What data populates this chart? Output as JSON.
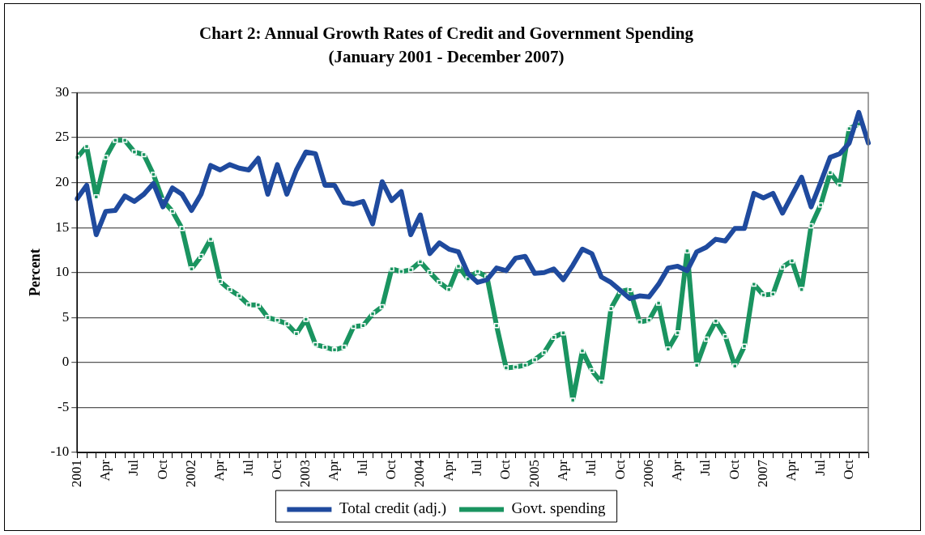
{
  "chart_data": {
    "type": "line",
    "title": "Chart 2: Annual Growth Rates of Credit and Government Spending",
    "subtitle": "(January 2001 - December 2007)",
    "ylabel": "Percent",
    "categories": [
      "2001",
      null,
      null,
      "Apr",
      null,
      null,
      "Jul",
      null,
      null,
      "Oct",
      null,
      null,
      "2002",
      null,
      null,
      "Apr",
      null,
      null,
      "Jul",
      null,
      null,
      "Oct",
      null,
      null,
      "2003",
      null,
      null,
      "Apr",
      null,
      null,
      "Jul",
      null,
      null,
      "Oct",
      null,
      null,
      "2004",
      null,
      null,
      "Apr",
      null,
      null,
      "Jul",
      null,
      null,
      "Oct",
      null,
      null,
      "2005",
      null,
      null,
      "Apr",
      null,
      null,
      "Jul",
      null,
      null,
      "Oct",
      null,
      null,
      "2006",
      null,
      null,
      "Apr",
      null,
      null,
      "Jul",
      null,
      null,
      "Oct",
      null,
      null,
      "2007",
      null,
      null,
      "Apr",
      null,
      null,
      "Jul",
      null,
      null,
      "Oct",
      null,
      null
    ],
    "series": [
      {
        "name": "Total credit (adj.)",
        "color": "#1f4a9e",
        "marker": "none",
        "values": [
          18.2,
          19.7,
          14.2,
          16.8,
          16.9,
          18.5,
          17.9,
          18.7,
          19.9,
          17.3,
          19.4,
          18.7,
          16.9,
          18.7,
          21.9,
          21.4,
          22.0,
          21.6,
          21.4,
          22.7,
          18.7,
          22.0,
          18.7,
          21.4,
          23.4,
          23.2,
          19.7,
          19.7,
          17.8,
          17.6,
          17.9,
          15.4,
          20.1,
          18.0,
          19.0,
          14.2,
          16.4,
          12.1,
          13.3,
          12.6,
          12.3,
          9.9,
          8.9,
          9.2,
          10.5,
          10.2,
          11.6,
          11.8,
          9.9,
          10.0,
          10.4,
          9.2,
          10.8,
          12.6,
          12.1,
          9.5,
          8.9,
          8.0,
          7.1,
          7.4,
          7.3,
          8.7,
          10.5,
          10.7,
          10.2,
          12.3,
          12.8,
          13.7,
          13.5,
          14.9,
          14.9,
          18.8,
          18.3,
          18.8,
          16.6,
          18.6,
          20.6,
          17.3,
          20.0,
          22.8,
          23.2,
          24.4,
          27.8,
          24.4
        ]
      },
      {
        "name": "Govt. spending",
        "color": "#1a9460",
        "marker": "square",
        "values": [
          22.8,
          24.0,
          18.4,
          22.8,
          24.7,
          24.7,
          23.4,
          23.1,
          20.9,
          18.0,
          16.8,
          14.9,
          10.4,
          11.8,
          13.7,
          9.0,
          8.1,
          7.4,
          6.4,
          6.4,
          5.0,
          4.7,
          4.3,
          3.2,
          4.8,
          2.0,
          1.7,
          1.4,
          1.7,
          4.0,
          4.1,
          5.4,
          6.2,
          10.4,
          10.1,
          10.3,
          11.2,
          10.0,
          8.9,
          8.1,
          10.7,
          9.3,
          10.1,
          9.5,
          4.1,
          -0.6,
          -0.5,
          -0.3,
          0.3,
          1.1,
          2.8,
          3.3,
          -4.2,
          1.3,
          -0.9,
          -2.2,
          6.0,
          7.9,
          8.1,
          4.5,
          4.7,
          6.6,
          1.5,
          3.3,
          12.4,
          -0.3,
          2.6,
          4.6,
          2.9,
          -0.4,
          1.8,
          8.7,
          7.5,
          7.6,
          10.6,
          11.3,
          8.1,
          15.2,
          17.5,
          21.1,
          19.7,
          26.0,
          26.5,
          null
        ]
      }
    ],
    "ylim": [
      -10,
      30
    ],
    "yticks": [
      -10,
      -5,
      0,
      5,
      10,
      15,
      20,
      25,
      30
    ],
    "grid": "y",
    "legend": "bottom"
  }
}
